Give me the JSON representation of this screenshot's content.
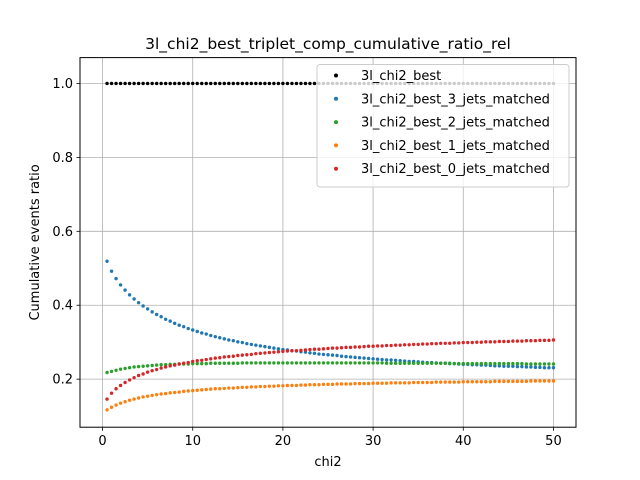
{
  "chart_data": {
    "type": "scatter",
    "title": "3l_chi2_best_triplet_comp_cumulative_ratio_rel",
    "xlabel": "chi2",
    "ylabel": "Cumulative events ratio",
    "xlim": [
      -2.5,
      52.5
    ],
    "ylim": [
      0.07,
      1.07
    ],
    "xticks": [
      0,
      10,
      20,
      30,
      40,
      50
    ],
    "yticks": [
      0.2,
      0.4,
      0.6,
      0.8,
      1.0
    ],
    "xtick_labels": [
      "0",
      "10",
      "20",
      "30",
      "40",
      "50"
    ],
    "ytick_labels": [
      "0.2",
      "0.4",
      "0.6",
      "0.8",
      "1.0"
    ],
    "grid": true,
    "legend_position": "top-right",
    "x": {
      "start": 0.5,
      "step": 0.5,
      "count": 100
    },
    "series": [
      {
        "name": "3l_chi2_best",
        "color": "#000000",
        "values": [
          1.0,
          1.0,
          1.0,
          1.0,
          1.0,
          1.0,
          1.0,
          1.0,
          1.0,
          1.0,
          1.0,
          1.0,
          1.0,
          1.0,
          1.0,
          1.0,
          1.0,
          1.0,
          1.0,
          1.0,
          1.0,
          1.0,
          1.0,
          1.0,
          1.0,
          1.0,
          1.0,
          1.0,
          1.0,
          1.0,
          1.0,
          1.0,
          1.0,
          1.0,
          1.0,
          1.0,
          1.0,
          1.0,
          1.0,
          1.0,
          1.0,
          1.0,
          1.0,
          1.0,
          1.0,
          1.0,
          1.0,
          1.0,
          1.0,
          1.0,
          1.0,
          1.0,
          1.0,
          1.0,
          1.0,
          1.0,
          1.0,
          1.0,
          1.0,
          1.0,
          1.0,
          1.0,
          1.0,
          1.0,
          1.0,
          1.0,
          1.0,
          1.0,
          1.0,
          1.0,
          1.0,
          1.0,
          1.0,
          1.0,
          1.0,
          1.0,
          1.0,
          1.0,
          1.0,
          1.0,
          1.0,
          1.0,
          1.0,
          1.0,
          1.0,
          1.0,
          1.0,
          1.0,
          1.0,
          1.0,
          1.0,
          1.0,
          1.0,
          1.0,
          1.0,
          1.0,
          1.0,
          1.0,
          1.0,
          1.0
        ]
      },
      {
        "name": "3l_chi2_best_3_jets_matched",
        "color": "#1f77b4",
        "values": [
          0.519,
          0.492,
          0.472,
          0.455,
          0.441,
          0.428,
          0.417,
          0.407,
          0.398,
          0.39,
          0.382,
          0.375,
          0.369,
          0.362,
          0.357,
          0.351,
          0.346,
          0.342,
          0.337,
          0.333,
          0.329,
          0.325,
          0.322,
          0.318,
          0.315,
          0.312,
          0.309,
          0.306,
          0.304,
          0.301,
          0.299,
          0.296,
          0.294,
          0.292,
          0.29,
          0.288,
          0.286,
          0.284,
          0.282,
          0.28,
          0.279,
          0.277,
          0.276,
          0.274,
          0.273,
          0.271,
          0.27,
          0.268,
          0.267,
          0.266,
          0.265,
          0.264,
          0.262,
          0.261,
          0.26,
          0.259,
          0.258,
          0.257,
          0.256,
          0.255,
          0.254,
          0.253,
          0.252,
          0.252,
          0.251,
          0.25,
          0.249,
          0.248,
          0.248,
          0.247,
          0.246,
          0.245,
          0.245,
          0.244,
          0.243,
          0.243,
          0.242,
          0.242,
          0.241,
          0.24,
          0.24,
          0.239,
          0.239,
          0.238,
          0.238,
          0.237,
          0.236,
          0.236,
          0.235,
          0.235,
          0.235,
          0.234,
          0.234,
          0.233,
          0.233,
          0.232,
          0.232,
          0.231,
          0.231,
          0.231
        ]
      },
      {
        "name": "3l_chi2_best_2_jets_matched",
        "color": "#2ca02c",
        "values": [
          0.218,
          0.221,
          0.224,
          0.227,
          0.229,
          0.231,
          0.233,
          0.234,
          0.235,
          0.236,
          0.237,
          0.238,
          0.239,
          0.239,
          0.24,
          0.24,
          0.241,
          0.241,
          0.241,
          0.242,
          0.242,
          0.242,
          0.242,
          0.243,
          0.243,
          0.243,
          0.243,
          0.243,
          0.243,
          0.243,
          0.244,
          0.244,
          0.244,
          0.244,
          0.244,
          0.244,
          0.244,
          0.244,
          0.244,
          0.244,
          0.244,
          0.244,
          0.244,
          0.244,
          0.244,
          0.244,
          0.244,
          0.244,
          0.244,
          0.244,
          0.244,
          0.244,
          0.244,
          0.244,
          0.244,
          0.244,
          0.244,
          0.244,
          0.244,
          0.244,
          0.244,
          0.244,
          0.243,
          0.243,
          0.243,
          0.243,
          0.243,
          0.243,
          0.243,
          0.243,
          0.243,
          0.243,
          0.243,
          0.243,
          0.243,
          0.243,
          0.243,
          0.242,
          0.242,
          0.242,
          0.242,
          0.242,
          0.242,
          0.242,
          0.242,
          0.242,
          0.242,
          0.242,
          0.242,
          0.242,
          0.242,
          0.242,
          0.242,
          0.241,
          0.241,
          0.241,
          0.241,
          0.241,
          0.241,
          0.241
        ]
      },
      {
        "name": "3l_chi2_best_1_jets_matched",
        "color": "#ff7f0e",
        "values": [
          0.117,
          0.124,
          0.13,
          0.135,
          0.139,
          0.143,
          0.146,
          0.149,
          0.152,
          0.154,
          0.156,
          0.158,
          0.16,
          0.161,
          0.163,
          0.164,
          0.165,
          0.167,
          0.168,
          0.169,
          0.17,
          0.171,
          0.172,
          0.173,
          0.174,
          0.174,
          0.175,
          0.176,
          0.176,
          0.177,
          0.178,
          0.178,
          0.179,
          0.179,
          0.18,
          0.18,
          0.181,
          0.181,
          0.182,
          0.182,
          0.183,
          0.183,
          0.183,
          0.184,
          0.184,
          0.185,
          0.185,
          0.185,
          0.186,
          0.186,
          0.186,
          0.187,
          0.187,
          0.187,
          0.187,
          0.188,
          0.188,
          0.188,
          0.188,
          0.189,
          0.189,
          0.189,
          0.189,
          0.19,
          0.19,
          0.19,
          0.19,
          0.19,
          0.191,
          0.191,
          0.191,
          0.191,
          0.191,
          0.192,
          0.192,
          0.192,
          0.192,
          0.192,
          0.192,
          0.193,
          0.193,
          0.193,
          0.193,
          0.193,
          0.193,
          0.193,
          0.194,
          0.194,
          0.194,
          0.194,
          0.194,
          0.194,
          0.194,
          0.194,
          0.195,
          0.195,
          0.195,
          0.195,
          0.195,
          0.195
        ]
      },
      {
        "name": "3l_chi2_best_0_jets_matched",
        "color": "#d62728",
        "values": [
          0.146,
          0.162,
          0.174,
          0.183,
          0.191,
          0.198,
          0.204,
          0.21,
          0.214,
          0.219,
          0.223,
          0.226,
          0.23,
          0.233,
          0.236,
          0.238,
          0.241,
          0.243,
          0.245,
          0.248,
          0.25,
          0.251,
          0.253,
          0.255,
          0.257,
          0.258,
          0.26,
          0.261,
          0.262,
          0.264,
          0.265,
          0.266,
          0.267,
          0.269,
          0.27,
          0.271,
          0.272,
          0.273,
          0.274,
          0.275,
          0.276,
          0.277,
          0.277,
          0.278,
          0.279,
          0.28,
          0.281,
          0.281,
          0.282,
          0.283,
          0.284,
          0.284,
          0.285,
          0.286,
          0.286,
          0.287,
          0.287,
          0.288,
          0.289,
          0.289,
          0.29,
          0.29,
          0.291,
          0.291,
          0.292,
          0.292,
          0.293,
          0.293,
          0.294,
          0.294,
          0.295,
          0.295,
          0.296,
          0.296,
          0.297,
          0.297,
          0.297,
          0.298,
          0.298,
          0.299,
          0.299,
          0.299,
          0.3,
          0.3,
          0.301,
          0.301,
          0.301,
          0.302,
          0.302,
          0.302,
          0.303,
          0.303,
          0.303,
          0.304,
          0.304,
          0.304,
          0.305,
          0.305,
          0.305,
          0.306
        ]
      }
    ]
  }
}
